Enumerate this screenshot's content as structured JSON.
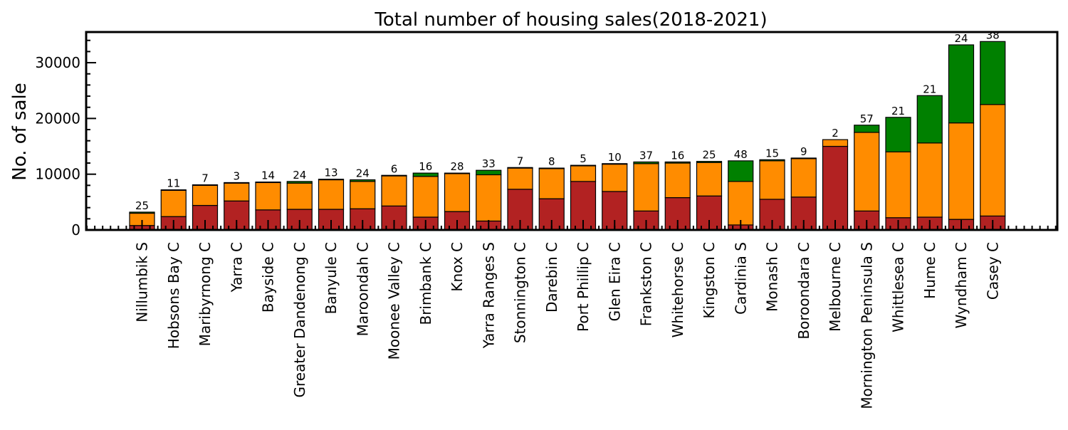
{
  "chart_data": {
    "type": "bar",
    "stacked": true,
    "title": "Total number of housing sales(2018-2021)",
    "xlabel": "",
    "ylabel": "No. of sale",
    "ylim": [
      0,
      35500
    ],
    "yticks": [
      0,
      10000,
      20000,
      30000
    ],
    "ytick_labels": [
      "0",
      "10000",
      "20000",
      "30000"
    ],
    "grid": false,
    "legend": "none",
    "categories": [
      "Nillumbik S",
      "Hobsons Bay C",
      "Maribyrnong C",
      "Yarra C",
      "Bayside C",
      "Greater Dandenong C",
      "Banyule C",
      "Maroondah C",
      "Moonee Valley C",
      "Brimbank C",
      "Knox C",
      "Yarra Ranges S",
      "Stonnington C",
      "Darebin C",
      "Port Phillip C",
      "Glen Eira C",
      "Frankston C",
      "Whitehorse C",
      "Kingston C",
      "Cardinia S",
      "Monash C",
      "Boroondara C",
      "Melbourne C",
      "Mornington Peninsula S",
      "Whittlesea C",
      "Hume C",
      "Wyndham C",
      "Casey C"
    ],
    "series": [
      {
        "color": "#b22222",
        "values": [
          800,
          2400,
          4400,
          5200,
          3600,
          3700,
          3700,
          3800,
          4300,
          2300,
          3300,
          1600,
          7300,
          5600,
          8700,
          6900,
          3400,
          5800,
          6100,
          900,
          5500,
          5900,
          15000,
          3400,
          2200,
          2300,
          1900,
          2500
        ]
      },
      {
        "color": "#ff8c00",
        "values": [
          2200,
          4700,
          3600,
          3200,
          4900,
          4700,
          5300,
          4900,
          5400,
          7300,
          6800,
          8300,
          3800,
          5400,
          2800,
          4900,
          8500,
          6200,
          6000,
          7800,
          6900,
          6900,
          1200,
          14100,
          11800,
          13300,
          17300,
          20000
        ]
      },
      {
        "color": "#008000",
        "values": [
          200,
          100,
          100,
          100,
          100,
          300,
          100,
          300,
          100,
          600,
          100,
          800,
          100,
          100,
          100,
          100,
          300,
          200,
          200,
          3700,
          200,
          100,
          0,
          1300,
          6200,
          8500,
          14000,
          11300
        ]
      }
    ],
    "bar_labels": [
      "25",
      "11",
      "7",
      "3",
      "14",
      "24",
      "13",
      "24",
      "6",
      "16",
      "28",
      "33",
      "7",
      "8",
      "5",
      "10",
      "37",
      "16",
      "25",
      "48",
      "15",
      "9",
      "2",
      "57",
      "21",
      "21",
      "24",
      "38"
    ]
  }
}
